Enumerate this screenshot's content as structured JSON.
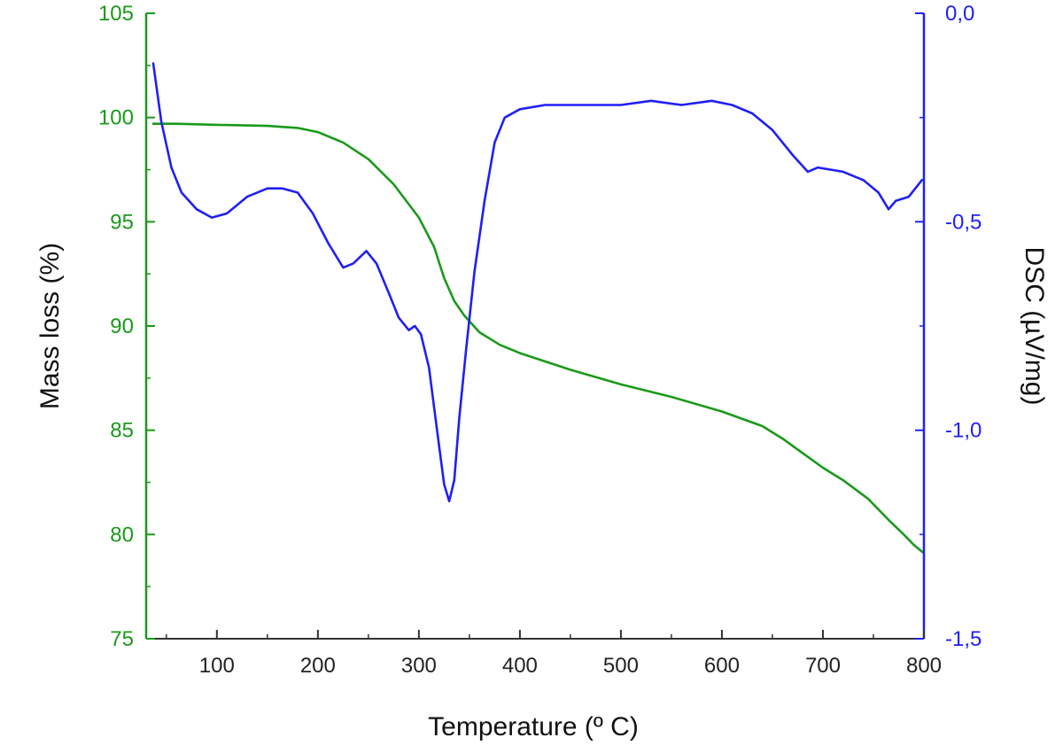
{
  "chart_data": {
    "type": "line",
    "xlabel": "Temperature (º C)",
    "ylabel": "Mass loss (%)",
    "y2label": "DSC (µV/mg)",
    "xlim": [
      30,
      800
    ],
    "ylim": [
      75,
      105
    ],
    "y2lim": [
      -1.5,
      0.0
    ],
    "x_ticks": [
      100,
      200,
      300,
      400,
      500,
      600,
      700,
      800
    ],
    "x_tick_labels": [
      "100",
      "200",
      "300",
      "400",
      "500",
      "600",
      "700",
      "800"
    ],
    "y_ticks": [
      75,
      80,
      85,
      90,
      95,
      100,
      105
    ],
    "y_tick_labels": [
      "75",
      "80",
      "85",
      "90",
      "95",
      "100",
      "105"
    ],
    "y2_ticks": [
      -1.5,
      -1.0,
      -0.5,
      0.0
    ],
    "y2_tick_labels": [
      "-1,5",
      "-1,0",
      "-0,5",
      "0,0"
    ],
    "grid": false,
    "colors": {
      "mass": "#1a9a1a",
      "dsc": "#1f1ff5",
      "axis": "#333333"
    },
    "series": [
      {
        "key": "mass",
        "axis": "left",
        "x": [
          37,
          60,
          100,
          150,
          180,
          200,
          225,
          250,
          275,
          300,
          315,
          325,
          335,
          345,
          360,
          380,
          400,
          450,
          500,
          550,
          600,
          640,
          660,
          680,
          700,
          720,
          745,
          765,
          780,
          790,
          800
        ],
        "y": [
          99.7,
          99.7,
          99.65,
          99.6,
          99.5,
          99.3,
          98.8,
          98.0,
          96.8,
          95.2,
          93.8,
          92.3,
          91.2,
          90.5,
          89.7,
          89.1,
          88.7,
          87.9,
          87.2,
          86.6,
          85.9,
          85.2,
          84.6,
          83.9,
          83.2,
          82.6,
          81.7,
          80.7,
          80.0,
          79.5,
          79.1
        ]
      },
      {
        "key": "dsc",
        "axis": "right",
        "x": [
          37,
          45,
          55,
          65,
          80,
          95,
          110,
          130,
          150,
          165,
          180,
          195,
          210,
          225,
          235,
          248,
          258,
          270,
          280,
          290,
          296,
          302,
          310,
          318,
          325,
          330,
          335,
          340,
          347,
          355,
          365,
          375,
          385,
          400,
          425,
          450,
          500,
          530,
          560,
          590,
          610,
          630,
          650,
          670,
          685,
          695,
          720,
          740,
          755,
          765,
          772,
          785,
          798
        ],
        "y": [
          -0.12,
          -0.26,
          -0.37,
          -0.43,
          -0.47,
          -0.49,
          -0.48,
          -0.44,
          -0.42,
          -0.42,
          -0.43,
          -0.48,
          -0.55,
          -0.61,
          -0.6,
          -0.57,
          -0.6,
          -0.67,
          -0.73,
          -0.76,
          -0.75,
          -0.77,
          -0.85,
          -1.0,
          -1.13,
          -1.17,
          -1.12,
          -0.97,
          -0.8,
          -0.62,
          -0.45,
          -0.31,
          -0.25,
          -0.23,
          -0.22,
          -0.22,
          -0.22,
          -0.21,
          -0.22,
          -0.21,
          -0.22,
          -0.24,
          -0.28,
          -0.34,
          -0.38,
          -0.37,
          -0.38,
          -0.4,
          -0.43,
          -0.47,
          -0.45,
          -0.44,
          -0.4
        ]
      }
    ]
  }
}
